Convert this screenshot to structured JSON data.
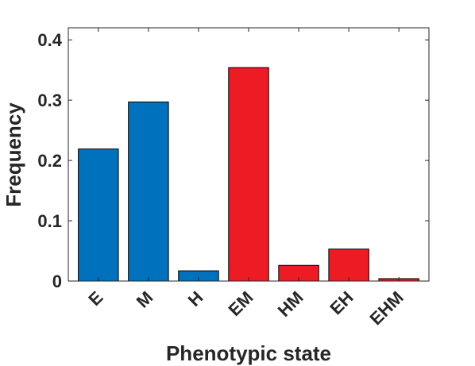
{
  "chart_data": {
    "type": "bar",
    "title": "",
    "xlabel": "Phenotypic state",
    "ylabel": "Frequency",
    "ylim": [
      0,
      0.42
    ],
    "yticks": [
      0,
      0.1,
      0.2,
      0.3,
      0.4
    ],
    "ytick_labels": [
      "0",
      "0.1",
      "0.2",
      "0.3",
      "0.4"
    ],
    "categories": [
      "E",
      "M",
      "H",
      "EM",
      "HM",
      "EH",
      "EHM"
    ],
    "values": [
      0.219,
      0.297,
      0.017,
      0.354,
      0.026,
      0.053,
      0.004
    ],
    "bar_colors": [
      "#0072bd",
      "#0072bd",
      "#0072bd",
      "#ed1c24",
      "#ed1c24",
      "#ed1c24",
      "#ed1c24"
    ],
    "grid": false,
    "legend": "none"
  }
}
